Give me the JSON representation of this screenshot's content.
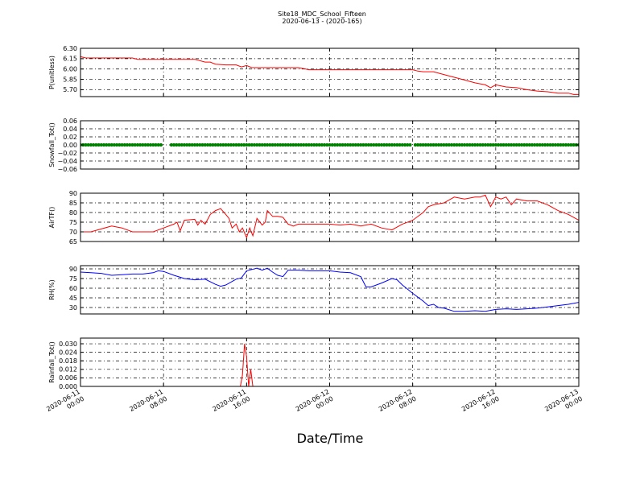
{
  "figure": {
    "title_line1": "Site18_MDC_School_Fifteen",
    "title_line2": "2020-06-13 - (2020-165)",
    "xlabel": "Date/Time"
  },
  "x_ticks": [
    {
      "l1": "2020-06-11",
      "l2": "00:00",
      "t": 0
    },
    {
      "l1": "2020-06-11",
      "l2": "08:00",
      "t": 8
    },
    {
      "l1": "2020-06-11",
      "l2": "16:00",
      "t": 16
    },
    {
      "l1": "2020-06-12",
      "l2": "00:00",
      "t": 24
    },
    {
      "l1": "2020-06-12",
      "l2": "08:00",
      "t": 32
    },
    {
      "l1": "2020-06-12",
      "l2": "16:00",
      "t": 40
    },
    {
      "l1": "2020-06-13",
      "l2": "00:00",
      "t": 48
    }
  ],
  "chart_data": [
    {
      "type": "line",
      "ylabel": "P(unitless)",
      "ylim": [
        5.6,
        6.3
      ],
      "yticks": [
        "5.70",
        "5.85",
        "6.00",
        "6.15",
        "6.30"
      ],
      "ytick_values": [
        5.7,
        5.85,
        6.0,
        6.15,
        6.3
      ],
      "color": "#ff0000",
      "grid": true,
      "x": [
        0,
        0.5,
        1,
        3,
        5,
        5.5,
        7,
        9,
        10,
        11,
        12,
        12.5,
        13,
        14,
        14.5,
        15,
        15.5,
        16,
        16.5,
        17,
        18,
        19,
        20,
        20.5,
        21,
        22,
        23,
        24,
        25,
        26,
        27,
        28,
        29,
        30,
        31,
        32,
        32.5,
        33,
        34,
        35,
        36,
        37,
        38,
        39,
        39.5,
        40,
        41,
        42,
        43,
        44,
        45,
        46,
        47,
        47.5,
        48
      ],
      "values": [
        6.18,
        6.16,
        6.16,
        6.16,
        6.16,
        6.14,
        6.14,
        6.14,
        6.14,
        6.14,
        6.1,
        6.1,
        6.07,
        6.06,
        6.06,
        6.06,
        6.03,
        6.05,
        6.02,
        6.02,
        6.02,
        6.02,
        6.02,
        6.02,
        6.02,
        5.99,
        5.99,
        5.99,
        5.99,
        5.99,
        5.99,
        5.99,
        5.99,
        5.99,
        5.99,
        5.99,
        5.97,
        5.96,
        5.96,
        5.92,
        5.88,
        5.84,
        5.8,
        5.77,
        5.73,
        5.77,
        5.74,
        5.73,
        5.7,
        5.68,
        5.67,
        5.65,
        5.65,
        5.63,
        5.63
      ]
    },
    {
      "type": "scatter",
      "ylabel": "Snowfall_Tot()",
      "ylim": [
        -0.06,
        0.06
      ],
      "yticks": [
        "−0.06",
        "−0.04",
        "−0.02",
        "0.00",
        "0.02",
        "0.04",
        "0.06"
      ],
      "ytick_values": [
        -0.06,
        -0.04,
        -0.02,
        0.0,
        0.02,
        0.04,
        0.06
      ],
      "color": "#008000",
      "grid": true,
      "x_start": 0,
      "x_end": 48,
      "x_step": 0.25,
      "gaps": [
        [
          7.8,
          8.6
        ],
        [
          31.8,
          32.2
        ]
      ],
      "value": 0.0
    },
    {
      "type": "line",
      "ylabel": "AirTF()",
      "ylim": [
        65,
        90
      ],
      "yticks": [
        "65",
        "70",
        "75",
        "80",
        "85",
        "90"
      ],
      "ytick_values": [
        65,
        70,
        75,
        80,
        85,
        90
      ],
      "color": "#ff0000",
      "grid": true,
      "x": [
        0,
        1,
        2,
        3,
        4,
        5,
        6,
        7,
        8,
        9,
        9.3,
        9.6,
        10,
        11,
        11.3,
        11.6,
        12,
        12.5,
        13,
        13.5,
        14,
        14.3,
        14.6,
        15,
        15.3,
        15.6,
        16,
        16.3,
        16.6,
        17,
        17.5,
        17.8,
        18,
        18.5,
        19,
        19.5,
        20,
        20.5,
        21,
        22,
        23,
        24,
        25,
        26,
        27,
        28,
        29,
        30,
        31,
        32,
        33,
        33.5,
        34,
        35,
        36,
        37,
        38,
        38.5,
        39,
        39.5,
        40,
        40.5,
        41,
        41.5,
        42,
        43,
        44,
        45,
        46,
        47,
        48
      ],
      "values": [
        70,
        70,
        71.5,
        73,
        72,
        70,
        70,
        70,
        72,
        74,
        75,
        70.5,
        76,
        76.5,
        73.5,
        76,
        74,
        79,
        81,
        82,
        79,
        77,
        72,
        74,
        70,
        72,
        67,
        72,
        68,
        77,
        73.5,
        75,
        81,
        78,
        78,
        77.5,
        74,
        73,
        74,
        74,
        74,
        74,
        73.5,
        74,
        73,
        74,
        72,
        71,
        74,
        76,
        80,
        83,
        84,
        85,
        88,
        87,
        88,
        88,
        89,
        83,
        88,
        87,
        88,
        84,
        87,
        86,
        86,
        84,
        81,
        79,
        76
      ]
    },
    {
      "type": "line",
      "ylabel": "RH(%)",
      "ylim": [
        20,
        95
      ],
      "yticks": [
        "30",
        "45",
        "60",
        "75",
        "90"
      ],
      "ytick_values": [
        30,
        45,
        60,
        75,
        90
      ],
      "color": "#0000ff",
      "grid": true,
      "x": [
        0,
        1,
        2,
        3,
        4,
        5,
        6,
        7,
        7.5,
        8,
        9,
        10,
        11,
        12,
        13,
        13.5,
        14,
        15,
        15.5,
        16,
        16.5,
        17,
        17.5,
        18,
        18.5,
        19,
        19.5,
        20,
        21,
        22,
        23,
        24,
        25,
        26,
        27,
        27.5,
        28,
        29,
        30,
        30.5,
        31,
        32,
        33,
        33.5,
        34,
        34.5,
        35,
        36,
        37,
        38,
        39,
        40,
        41,
        42,
        43,
        44,
        45,
        46,
        47,
        48
      ],
      "values": [
        85,
        84,
        83,
        80,
        81,
        82,
        82,
        84,
        87,
        86,
        80,
        75,
        73,
        74,
        66,
        63,
        65,
        74,
        76,
        87,
        89,
        91,
        88,
        91,
        85,
        80,
        78,
        88,
        88,
        87,
        87,
        87,
        85,
        84,
        78,
        62,
        62,
        68,
        75,
        73,
        65,
        52,
        40,
        33,
        35,
        30,
        29,
        24,
        24,
        25,
        24,
        27,
        28,
        27,
        28,
        29,
        31,
        33,
        35,
        38
      ]
    },
    {
      "type": "line",
      "ylabel": "Rainfall_Tot()",
      "ylim": [
        0,
        0.034
      ],
      "yticks": [
        "0.000",
        "0.006",
        "0.012",
        "0.018",
        "0.024",
        "0.030"
      ],
      "ytick_values": [
        0.0,
        0.006,
        0.012,
        0.018,
        0.024,
        0.03
      ],
      "color": "#ff0000",
      "grid": true,
      "x": [
        0,
        15.4,
        15.6,
        15.8,
        16.0,
        16.2,
        16.4,
        16.6,
        16.8,
        17.0,
        48
      ],
      "values": [
        0,
        0,
        0.008,
        0.03,
        0.021,
        0.0,
        0.012,
        0.0,
        0,
        0,
        0
      ]
    }
  ]
}
